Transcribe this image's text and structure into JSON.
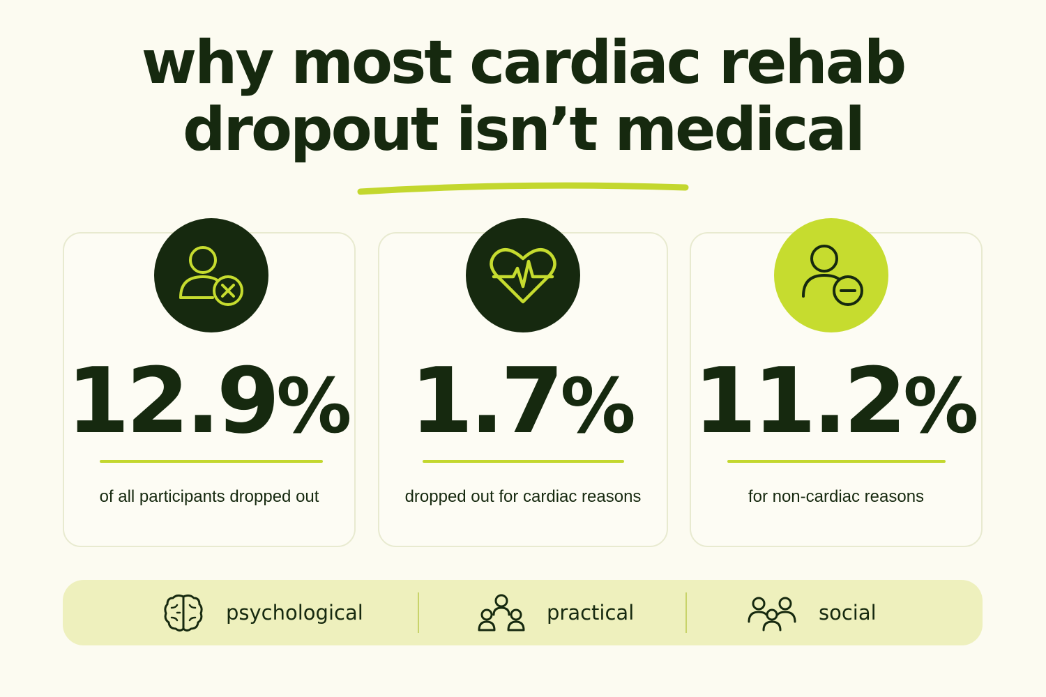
{
  "title": {
    "line1": "why most cardiac rehab",
    "line2": "dropout isn’t medical"
  },
  "cards": [
    {
      "value": "12.9",
      "unit": "%",
      "caption": "of all participants dropped out",
      "icon": "person-x-icon"
    },
    {
      "value": "1.7",
      "unit": "%",
      "caption": "dropped out for cardiac reasons",
      "icon": "heart-pulse-icon"
    },
    {
      "value": "11.2",
      "unit": "%",
      "caption": "for non-cardiac reasons",
      "icon": "person-minus-icon"
    }
  ],
  "categories": [
    {
      "label": "psychological",
      "icon": "brain-icon"
    },
    {
      "label": "practical",
      "icon": "people-group-icon"
    },
    {
      "label": "social",
      "icon": "social-group-icon"
    }
  ],
  "colors": {
    "background": "#fcfbf1",
    "text": "#16290f",
    "accent": "#c6dc2f",
    "category_bar": "#eef0bd"
  }
}
